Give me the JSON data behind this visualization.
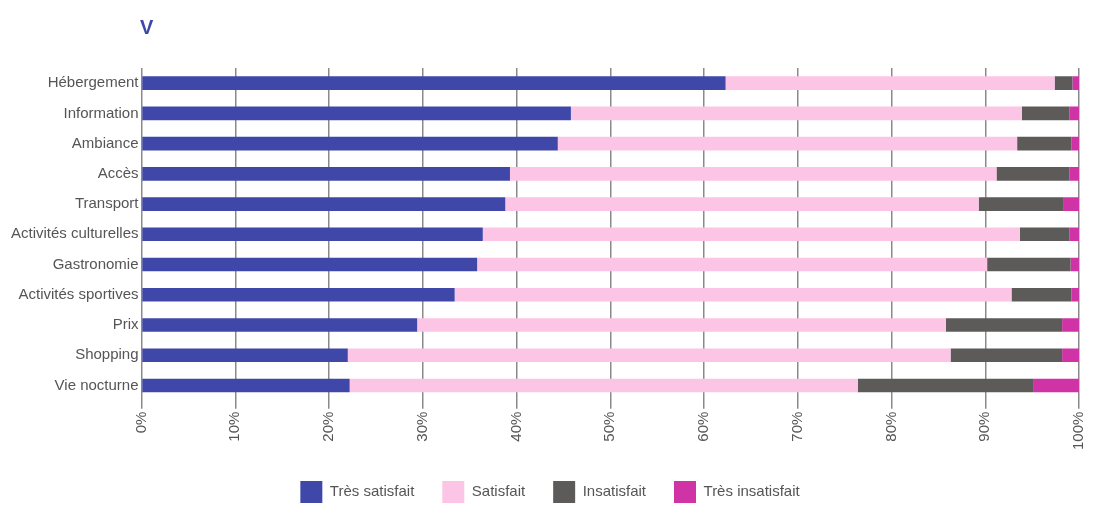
{
  "chart_data": {
    "type": "bar",
    "title": "V",
    "orientation": "horizontal",
    "stacked": true,
    "categories": [
      "Hébergement",
      "Information",
      "Ambiance",
      "Accès",
      "Transport",
      "Activités culturelles",
      "Gastronomie",
      "Activités sportives",
      "Prix",
      "Shopping",
      "Vie nocturne"
    ],
    "series": [
      {
        "name": "Très satisfait",
        "color": "#3f48a9",
        "values": [
          62.3,
          45.8,
          44.4,
          39.3,
          38.8,
          36.4,
          35.8,
          33.4,
          29.4,
          22.0,
          22.2
        ]
      },
      {
        "name": "Satisfait",
        "color": "#fcc5e5",
        "values": [
          35.1,
          48.1,
          49.0,
          51.9,
          50.5,
          57.3,
          54.4,
          59.4,
          56.4,
          64.3,
          54.2
        ]
      },
      {
        "name": "Insatisfait",
        "color": "#5c5b59",
        "values": [
          1.9,
          5.1,
          5.8,
          7.8,
          9.0,
          5.3,
          8.9,
          6.4,
          12.4,
          11.9,
          18.7
        ]
      },
      {
        "name": "Très insatisfait",
        "color": "#d033a6",
        "values": [
          0.7,
          1.0,
          0.8,
          1.0,
          1.7,
          1.0,
          0.9,
          0.8,
          1.8,
          1.8,
          4.9
        ]
      }
    ],
    "xlim": [
      0,
      100
    ],
    "xticks": [
      {
        "value": 0,
        "label": "0%"
      },
      {
        "value": 10,
        "label": "10%"
      },
      {
        "value": 20,
        "label": "20%"
      },
      {
        "value": 30,
        "label": "30%"
      },
      {
        "value": 40,
        "label": "40%"
      },
      {
        "value": 50,
        "label": "50%"
      },
      {
        "value": 60,
        "label": "60%"
      },
      {
        "value": 70,
        "label": "70%"
      },
      {
        "value": 80,
        "label": "80%"
      },
      {
        "value": 90,
        "label": "90%"
      },
      {
        "value": 100,
        "label": "100%"
      }
    ],
    "grid": "x",
    "legend": "bottom"
  }
}
